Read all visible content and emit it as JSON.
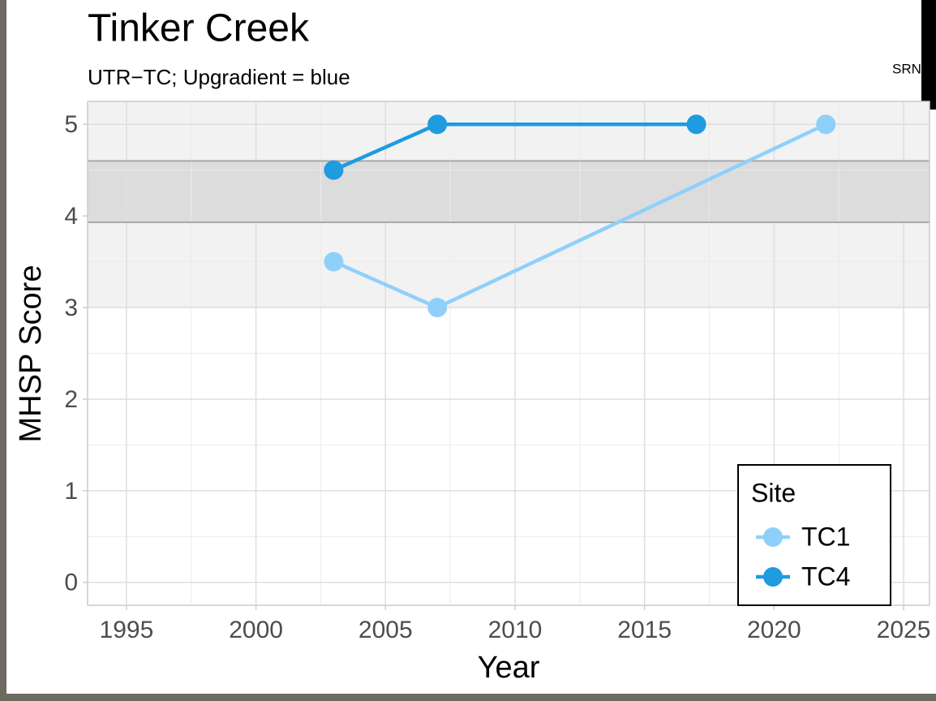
{
  "chart_data": {
    "type": "line",
    "title": "Tinker Creek",
    "subtitle": "UTR−TC; Upgradient = blue",
    "xlabel": "Year",
    "ylabel": "MHSP Score",
    "xlim": [
      1993.5,
      2026
    ],
    "xticks": [
      1995,
      2000,
      2005,
      2010,
      2015,
      2020,
      2025
    ],
    "ylim": [
      -0.25,
      5.25
    ],
    "yticks": [
      0,
      1,
      2,
      3,
      4,
      5
    ],
    "bands": [
      {
        "from": 3,
        "to": 5.25,
        "color": "#f2f2f2"
      },
      {
        "from": 3.93,
        "to": 4.6,
        "color": "#dcdcdc"
      }
    ],
    "grid": true,
    "legend_title": "Site",
    "legend_position": "bottom-right",
    "series": [
      {
        "name": "TC1",
        "color": "#8fd0fa",
        "x": [
          2003,
          2007,
          2022
        ],
        "values": [
          3.5,
          3.0,
          5.0
        ]
      },
      {
        "name": "TC4",
        "color": "#1f9be0",
        "x": [
          2003,
          2007,
          2017
        ],
        "values": [
          4.5,
          5.0,
          5.0
        ]
      }
    ],
    "annotation": "SRN"
  }
}
